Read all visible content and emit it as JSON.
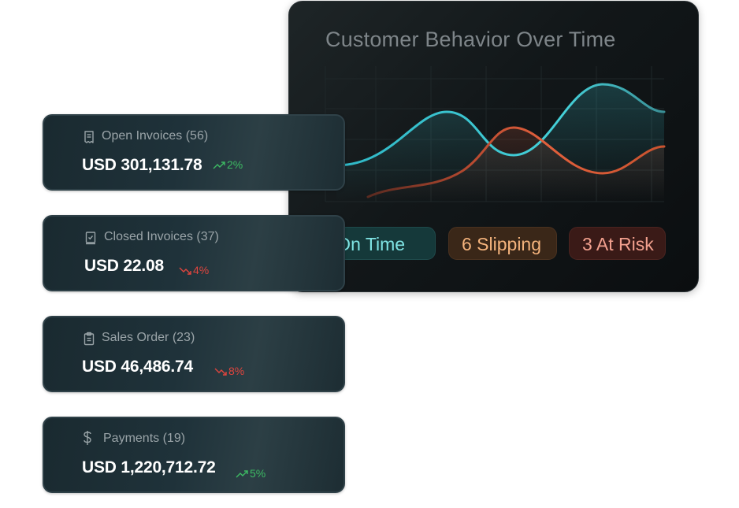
{
  "chart_panel": {
    "title": "Customer Behavior Over Time",
    "colors": {
      "on_time": "#3cc4d0",
      "slipping": "#d9593a"
    },
    "statuses": [
      {
        "count_label": "5 On Time",
        "color": "#7fe4e4"
      },
      {
        "count_label": "6 Slipping",
        "color": "#f4b37c"
      },
      {
        "count_label": "3 At Risk",
        "color": "#f2a08e"
      }
    ]
  },
  "cards": [
    {
      "icon": "receipt-icon",
      "label": "Open Invoices (56)",
      "amount": "USD 301,131.78",
      "trend_direction": "up",
      "trend_value": "2%"
    },
    {
      "icon": "checked-document-icon",
      "label": "Closed Invoices (37)",
      "amount": "USD 22.08",
      "trend_direction": "down",
      "trend_value": "4%"
    },
    {
      "icon": "clipboard-icon",
      "label": "Sales Order (23)",
      "amount": "USD 46,486.74",
      "trend_direction": "down",
      "trend_value": "8%"
    },
    {
      "icon": "dollar-icon",
      "label": "Payments (19)",
      "amount": "USD 1,220,712.72",
      "trend_direction": "up",
      "trend_value": "5%"
    }
  ],
  "colors": {
    "trend_up": "#3dba63",
    "trend_down": "#e0453e"
  }
}
